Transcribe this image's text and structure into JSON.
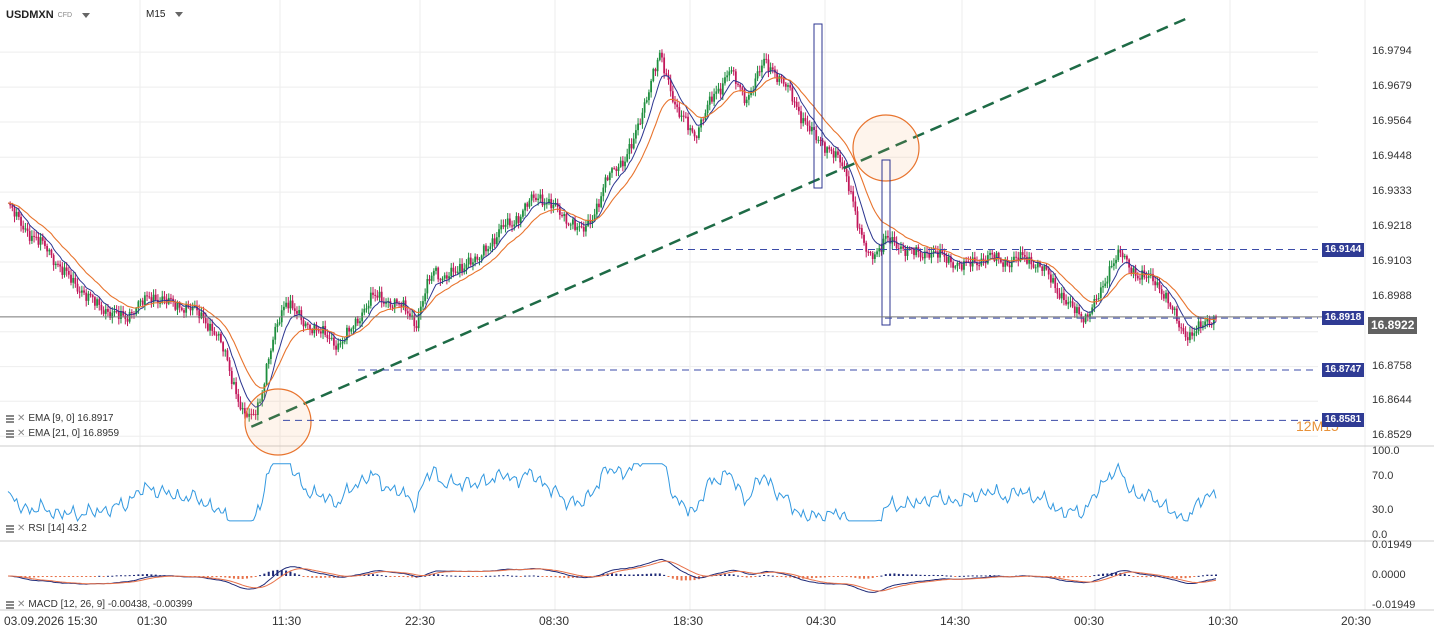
{
  "header": {
    "symbol": "USDMXN",
    "symbol_type": "CFD",
    "timeframe": "M15"
  },
  "price_axis": {
    "ticks": [
      "16.9794",
      "16.9679",
      "16.9564",
      "16.9448",
      "16.9333",
      "16.9218",
      "16.9103",
      "16.8988",
      "16.8873",
      "16.8758",
      "16.8644",
      "16.8529"
    ],
    "current_price": "16.8922",
    "level_tags": [
      "16.9144",
      "16.8918",
      "16.8747",
      "16.8581"
    ]
  },
  "rsi_axis": {
    "ticks": [
      "100.0",
      "70.0",
      "30.0",
      "0.0"
    ]
  },
  "macd_axis": {
    "ticks": [
      "0.01949",
      "0.0000",
      "-0.01949"
    ]
  },
  "time_axis": {
    "ticks": [
      "03.09.2026 15:30",
      "01:30",
      "11:30",
      "22:30",
      "08:30",
      "18:30",
      "04:30",
      "14:30",
      "00:30",
      "10:30",
      "20:30"
    ]
  },
  "indicators": {
    "ema9": "EMA [9, 0] 16.8917",
    "ema21": "EMA [21, 0] 16.8959",
    "rsi": "RSI [14] 43.2",
    "macd": "MACD [12, 26, 9] -0.00438, -0.00399"
  },
  "watermark": "12M15",
  "colors": {
    "bull": "#1e8e3e",
    "bear": "#c2185b",
    "ema9": "#2c3590",
    "ema21": "#e8742e",
    "trendline": "#1e6b46",
    "level": "#3b4ba8",
    "rsi": "#3399e0",
    "macd_pos": "#1f2a78",
    "macd_neg": "#e8724a",
    "tag": "#2f3b94"
  },
  "chart_data": {
    "type": "candlestick",
    "title": "USDMXN",
    "timeframe": "M15",
    "y_range": [
      16.85,
      16.99
    ],
    "x_labels": [
      "03.09.2026 15:30",
      "01:30",
      "11:30",
      "22:30",
      "08:30",
      "18:30",
      "04:30",
      "14:30",
      "00:30",
      "10:30",
      "20:30"
    ],
    "close_path": [
      [
        0,
        16.929
      ],
      [
        6,
        16.923
      ],
      [
        12,
        16.918
      ],
      [
        18,
        16.915
      ],
      [
        24,
        16.908
      ],
      [
        30,
        16.904
      ],
      [
        36,
        16.899
      ],
      [
        42,
        16.896
      ],
      [
        48,
        16.893
      ],
      [
        54,
        16.892
      ],
      [
        60,
        16.896
      ],
      [
        66,
        16.899
      ],
      [
        72,
        16.8975
      ],
      [
        78,
        16.896
      ],
      [
        84,
        16.895
      ],
      [
        90,
        16.892
      ],
      [
        96,
        16.886
      ],
      [
        100,
        16.88
      ],
      [
        104,
        16.87
      ],
      [
        108,
        16.86
      ],
      [
        112,
        16.859
      ],
      [
        116,
        16.865
      ],
      [
        120,
        16.878
      ],
      [
        124,
        16.89
      ],
      [
        128,
        16.898
      ],
      [
        132,
        16.894
      ],
      [
        136,
        16.89
      ],
      [
        140,
        16.889
      ],
      [
        144,
        16.887
      ],
      [
        148,
        16.885
      ],
      [
        152,
        16.883
      ],
      [
        156,
        16.886
      ],
      [
        160,
        16.89
      ],
      [
        164,
        16.895
      ],
      [
        168,
        16.899
      ],
      [
        172,
        16.898
      ],
      [
        176,
        16.897
      ],
      [
        180,
        16.896
      ],
      [
        184,
        16.894
      ],
      [
        188,
        16.89
      ],
      [
        192,
        16.9
      ],
      [
        196,
        16.908
      ],
      [
        200,
        16.905
      ],
      [
        204,
        16.906
      ],
      [
        208,
        16.908
      ],
      [
        212,
        16.911
      ],
      [
        216,
        16.91
      ],
      [
        220,
        16.915
      ],
      [
        224,
        16.918
      ],
      [
        228,
        16.922
      ],
      [
        232,
        16.923
      ],
      [
        236,
        16.926
      ],
      [
        240,
        16.93
      ],
      [
        244,
        16.932
      ],
      [
        248,
        16.93
      ],
      [
        252,
        16.928
      ],
      [
        256,
        16.925
      ],
      [
        260,
        16.923
      ],
      [
        264,
        16.92
      ],
      [
        268,
        16.924
      ],
      [
        272,
        16.93
      ],
      [
        276,
        16.938
      ],
      [
        280,
        16.942
      ],
      [
        284,
        16.944
      ],
      [
        288,
        16.95
      ],
      [
        292,
        16.96
      ],
      [
        296,
        16.97
      ],
      [
        300,
        16.978
      ],
      [
        304,
        16.97
      ],
      [
        308,
        16.96
      ],
      [
        312,
        16.956
      ],
      [
        316,
        16.952
      ],
      [
        320,
        16.958
      ],
      [
        324,
        16.964
      ],
      [
        328,
        16.968
      ],
      [
        332,
        16.974
      ],
      [
        336,
        16.968
      ],
      [
        340,
        16.964
      ],
      [
        344,
        16.97
      ],
      [
        348,
        16.976
      ],
      [
        352,
        16.974
      ],
      [
        356,
        16.97
      ],
      [
        360,
        16.966
      ],
      [
        364,
        16.96
      ],
      [
        368,
        16.955
      ],
      [
        372,
        16.951
      ],
      [
        376,
        16.949
      ],
      [
        380,
        16.946
      ],
      [
        384,
        16.942
      ],
      [
        388,
        16.934
      ],
      [
        392,
        16.92
      ],
      [
        396,
        16.912
      ],
      [
        400,
        16.914
      ],
      [
        404,
        16.918
      ],
      [
        408,
        16.916
      ],
      [
        412,
        16.915
      ],
      [
        416,
        16.914
      ],
      [
        420,
        16.912
      ],
      [
        424,
        16.914
      ],
      [
        428,
        16.913
      ],
      [
        432,
        16.911
      ],
      [
        436,
        16.91
      ],
      [
        440,
        16.909
      ],
      [
        444,
        16.91
      ],
      [
        448,
        16.911
      ],
      [
        452,
        16.912
      ],
      [
        456,
        16.911
      ],
      [
        460,
        16.91
      ],
      [
        464,
        16.911
      ],
      [
        468,
        16.912
      ],
      [
        472,
        16.91
      ],
      [
        476,
        16.908
      ],
      [
        480,
        16.905
      ],
      [
        484,
        16.9
      ],
      [
        488,
        16.896
      ],
      [
        492,
        16.894
      ],
      [
        496,
        16.892
      ],
      [
        500,
        16.896
      ],
      [
        504,
        16.902
      ],
      [
        508,
        16.91
      ],
      [
        512,
        16.913
      ],
      [
        516,
        16.909
      ],
      [
        520,
        16.906
      ],
      [
        524,
        16.905
      ],
      [
        528,
        16.904
      ],
      [
        532,
        16.9
      ],
      [
        536,
        16.894
      ],
      [
        540,
        16.888
      ],
      [
        544,
        16.886
      ],
      [
        548,
        16.888
      ],
      [
        552,
        16.891
      ],
      [
        556,
        16.8922
      ]
    ],
    "horizontal_levels": [
      16.9144,
      16.8918,
      16.8747,
      16.8581
    ],
    "current_price": 16.8922,
    "rsi": {
      "range": [
        0,
        100
      ],
      "current": 43.2
    },
    "macd": {
      "range": [
        -0.01949,
        0.01949
      ],
      "macd": -0.00438,
      "signal": -0.00399
    }
  }
}
